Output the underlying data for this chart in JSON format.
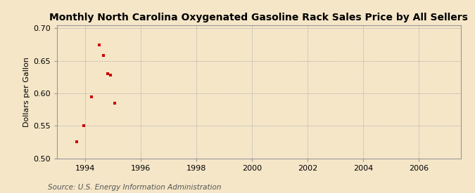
{
  "title": "Monthly North Carolina Oxygenated Gasoline Rack Sales Price by All Sellers",
  "ylabel": "Dollars per Gallon",
  "source": "Source: U.S. Energy Information Administration",
  "background_color": "#f5e6c8",
  "plot_bg_color": "#f5e6c8",
  "marker_color": "#cc0000",
  "xlim": [
    1993.0,
    2007.5
  ],
  "ylim": [
    0.5,
    0.705
  ],
  "xticks": [
    1994,
    1996,
    1998,
    2000,
    2002,
    2004,
    2006
  ],
  "yticks": [
    0.5,
    0.55,
    0.6,
    0.65,
    0.7
  ],
  "x_data": [
    1993.7,
    1993.97,
    1994.25,
    1994.52,
    1994.68,
    1994.82,
    1994.92,
    1995.08
  ],
  "y_data": [
    0.525,
    0.55,
    0.595,
    0.675,
    0.658,
    0.63,
    0.628,
    0.585
  ],
  "title_fontsize": 10,
  "ylabel_fontsize": 8,
  "tick_fontsize": 8,
  "source_fontsize": 7.5
}
